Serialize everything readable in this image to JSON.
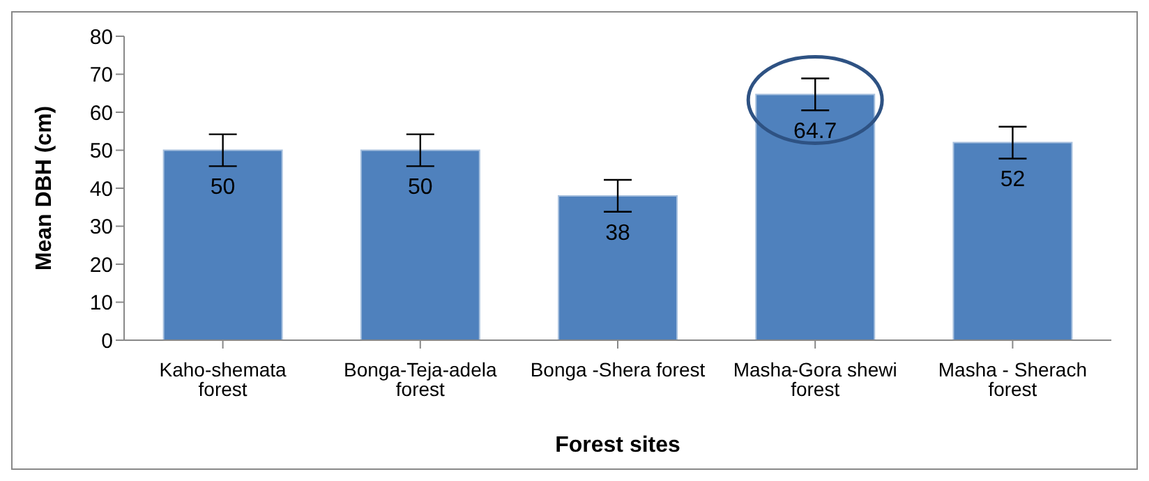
{
  "chart_data": {
    "type": "bar",
    "xlabel": "Forest sites",
    "ylabel": "Mean DBH (cm)",
    "categories": [
      "Kaho-shemata forest",
      "Bonga-Teja-adela forest",
      "Bonga -Shera forest",
      "Masha-Gora shewi forest",
      "Masha - Sherach forest"
    ],
    "values": [
      50,
      50,
      38,
      64.7,
      52
    ],
    "errors": [
      4.2,
      4.2,
      4.2,
      4.2,
      4.2
    ],
    "color": "#4f81bd",
    "ylim": [
      0,
      80
    ],
    "yticks": [
      0,
      10,
      20,
      30,
      40,
      50,
      60,
      70,
      80
    ],
    "data_labels": true
  }
}
